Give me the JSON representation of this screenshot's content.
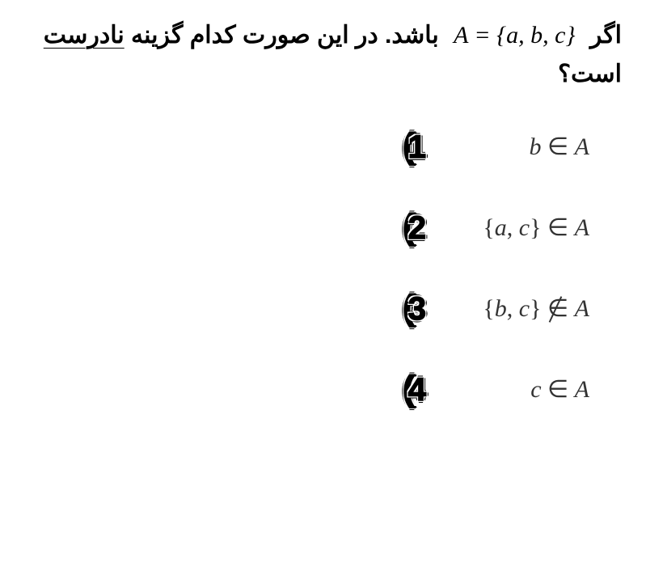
{
  "question": {
    "prefix_fa": "اگر",
    "set_def_latex": "A = {a, b, c}",
    "mid_fa": "باشد. در این صورت کدام گزینه",
    "deco_fa": "نادرست",
    "suffix_fa": "است؟"
  },
  "options": [
    {
      "num": "1",
      "expr_html": "<span class='it'>b</span> ∈ <span class='it'>A</span>"
    },
    {
      "num": "2",
      "expr_html": "{<span class='it'>a</span>, <span class='it'>c</span>} ∈ <span class='it'>A</span>"
    },
    {
      "num": "3",
      "expr_html": "{<span class='it'>b</span>, <span class='it'>c</span>} <span class='strike'>∈</span> <span class='it'>A</span>"
    },
    {
      "num": "4",
      "expr_html": "<span class='it'>c</span> ∈ <span class='it'>A</span>"
    }
  ],
  "colors": {
    "text": "#000000",
    "math": "#333333",
    "background": "#ffffff"
  },
  "typography": {
    "question_fontsize_pt": 22,
    "question_weight": 900,
    "option_num_fontsize_pt": 30,
    "option_math_fontsize_pt": 22
  }
}
